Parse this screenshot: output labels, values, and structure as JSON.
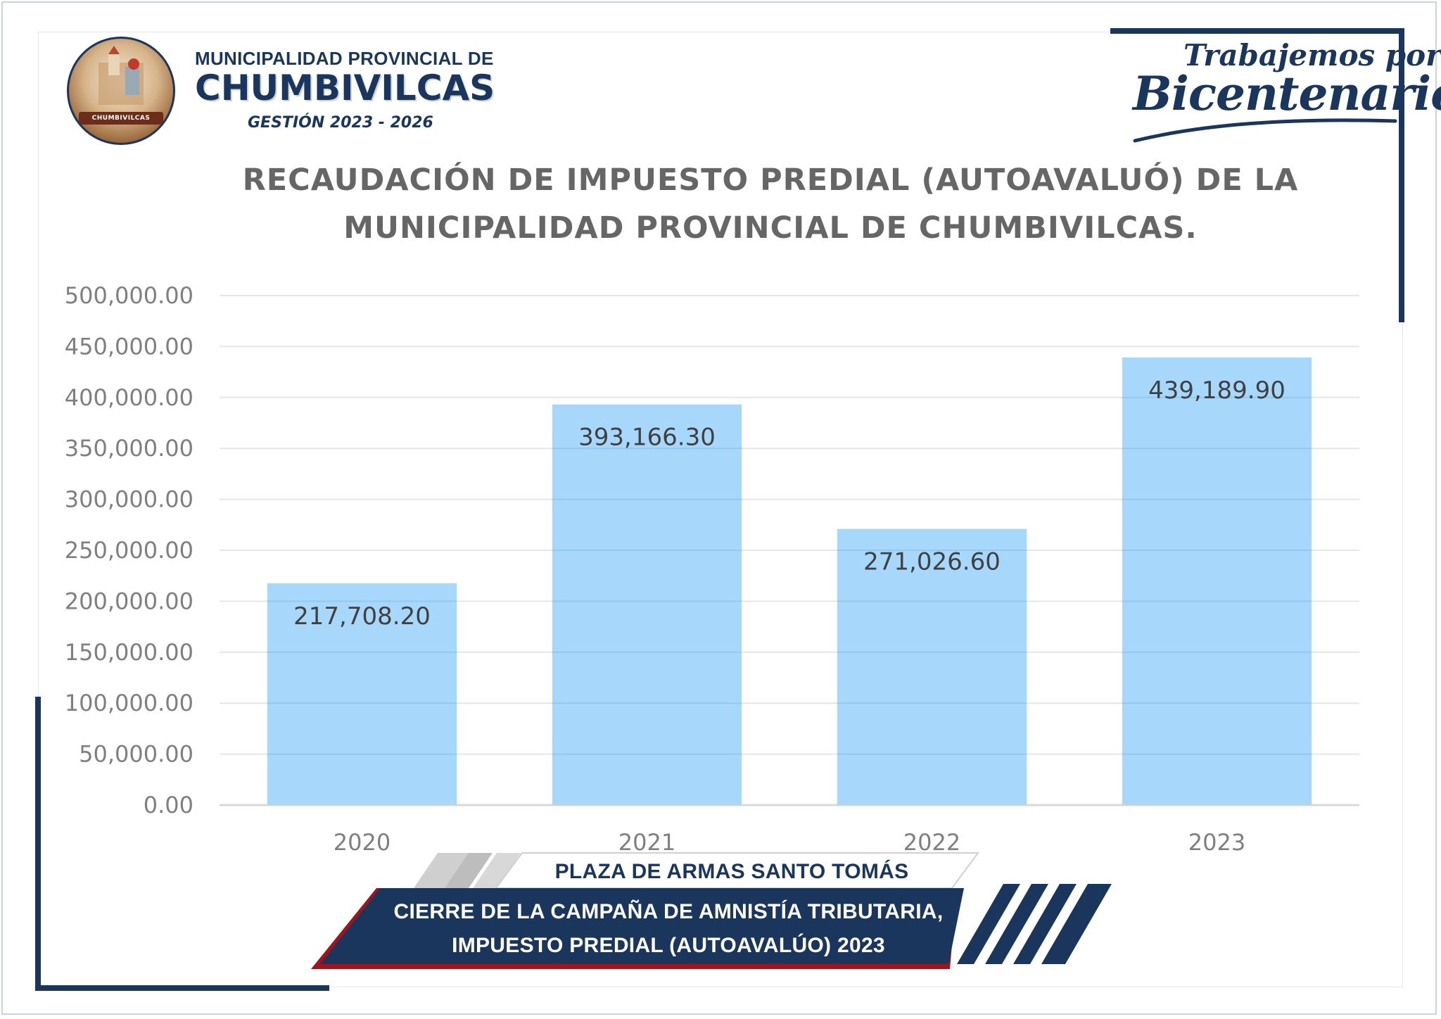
{
  "header": {
    "org_line1": "MUNICIPALIDAD PROVINCIAL DE",
    "org_line2": "CHUMBIVILCAS",
    "org_line3": "GESTIÓN 2023 - 2026",
    "seal_text": "CHUMBIVILCAS",
    "motto_top": "Trabajemos por el",
    "motto_main": "Bicentenario"
  },
  "colors": {
    "brand_navy": "#1b365d",
    "accent_red": "#a0141e",
    "bar_fill": "#a7d8fb",
    "axis_text": "#7f7f7f",
    "title_text": "#666666"
  },
  "chart_data": {
    "type": "bar",
    "title_lines": [
      "RECAUDACIÓN DE IMPUESTO PREDIAL (AUTOAVALUÓ) DE LA",
      "MUNICIPALIDAD PROVINCIAL DE CHUMBIVILCAS."
    ],
    "categories": [
      "2020",
      "2021",
      "2022",
      "2023"
    ],
    "values": [
      217708.2,
      393166.3,
      271026.6,
      439189.9
    ],
    "data_labels": [
      "217,708.20",
      "393,166.30",
      "271,026.60",
      "439,189.90"
    ],
    "ylim": [
      0,
      500000
    ],
    "yticks": [
      "0.00",
      "50,000.00",
      "100,000.00",
      "150,000.00",
      "200,000.00",
      "250,000.00",
      "300,000.00",
      "350,000.00",
      "400,000.00",
      "450,000.00",
      "500,000.00"
    ],
    "xlabel": "",
    "ylabel": "",
    "grid": true,
    "legend": "none"
  },
  "banner": {
    "location": "PLAZA DE ARMAS SANTO TOMÁS",
    "line1": "CIERRE DE LA CAMPAÑA DE AMNISTÍA TRIBUTARIA,",
    "line2": "IMPUESTO PREDIAL (AUTOAVALÚO) 2023"
  }
}
